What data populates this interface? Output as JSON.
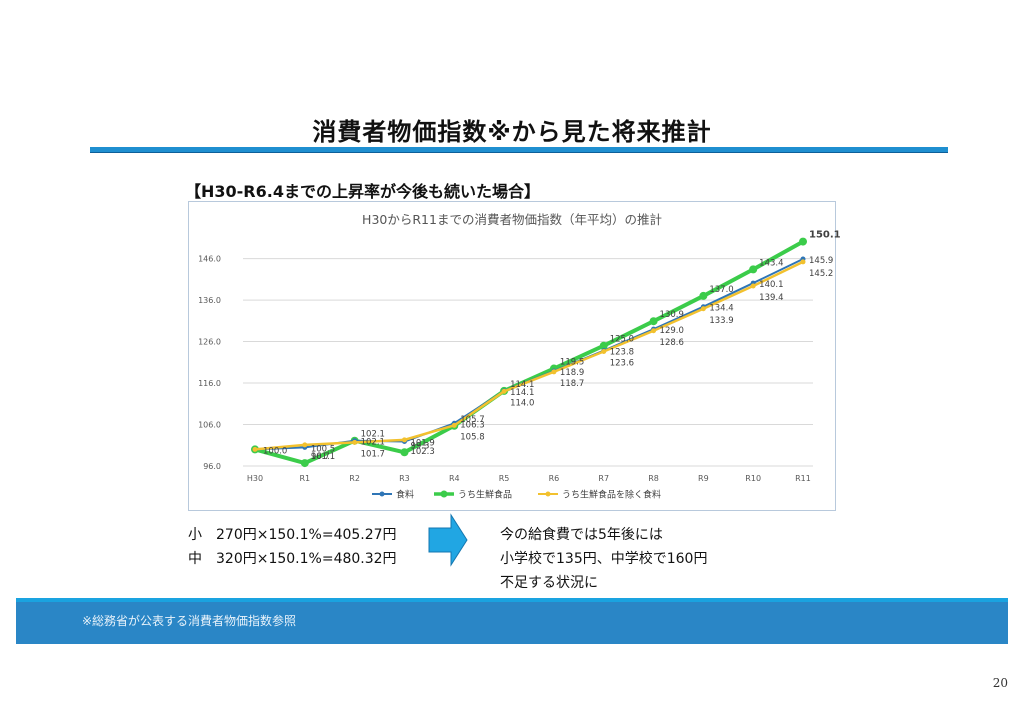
{
  "slide": {
    "title": "消費者物価指数※から見た将来推計",
    "subtitle": "【H30-R6.4までの上昇率が今後も続いた場合】",
    "formulas": [
      "小　270円×150.1%=405.27円",
      "中　320円×150.1%=480.32円"
    ],
    "outcome": [
      "今の給食費では5年後には",
      "小学校で135円、中学校で160円",
      "不足する状況に"
    ],
    "footer_note": "※総務省が公表する消費者物価指数参照",
    "page_number": "20"
  },
  "chart_data": {
    "type": "line",
    "title": "H30からR11までの消費者物価指数（年平均）の推計",
    "categories": [
      "H30",
      "R1",
      "R2",
      "R3",
      "R4",
      "R5",
      "R6",
      "R7",
      "R8",
      "R9",
      "R10",
      "R11"
    ],
    "y_ticks": [
      "96.0",
      "106.0",
      "116.0",
      "126.0",
      "136.0",
      "146.0"
    ],
    "ylim": [
      96,
      150
    ],
    "grid": true,
    "legend_position": "bottom",
    "series": [
      {
        "name": "食料",
        "color": "#2e75b6",
        "values": [
          100.0,
          100.5,
          102.1,
          101.9,
          106.3,
          114.1,
          118.9,
          123.8,
          129.0,
          134.4,
          140.1,
          145.9
        ],
        "labels": [
          "",
          "100.5",
          "102.1",
          "101.9",
          "106.3",
          "114.1",
          "118.9",
          "123.8",
          "129.0",
          "134.4",
          "140.1",
          "145.9"
        ]
      },
      {
        "name": "うち生鮮食品",
        "color": "#3bcc4a",
        "values": [
          100.0,
          96.7,
          102.1,
          99.3,
          105.7,
          114.1,
          119.5,
          125.0,
          130.9,
          137.0,
          143.4,
          150.1
        ],
        "labels": [
          "100.0",
          "96.7",
          "102.1",
          "99.3",
          "105.7",
          "114.1",
          "119.5",
          "125.0",
          "130.9",
          "137.0",
          "143.4",
          "150.1"
        ]
      },
      {
        "name": "うち生鮮食品を除く食料",
        "color": "#f2c12e",
        "values": [
          100.0,
          101.1,
          101.7,
          102.3,
          105.8,
          114.0,
          118.7,
          123.6,
          128.6,
          133.9,
          139.4,
          145.2
        ],
        "labels": [
          "",
          "101.1",
          "101.7",
          "102.3",
          "105.8",
          "114.0",
          "118.7",
          "123.6",
          "128.6",
          "133.9",
          "139.4",
          "145.2"
        ]
      }
    ]
  }
}
